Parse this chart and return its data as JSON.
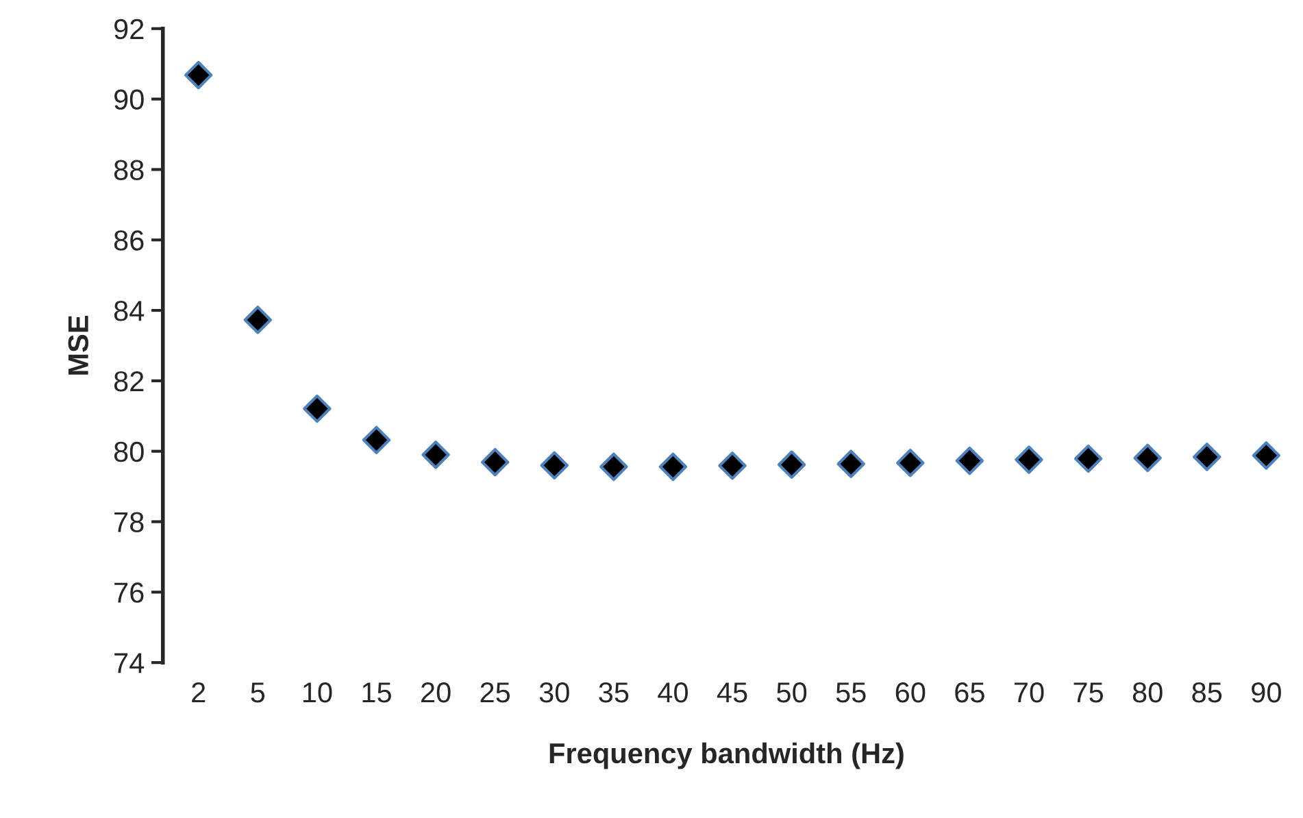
{
  "chart_data": {
    "type": "scatter",
    "xlabel": "Frequency bandwidth (Hz)",
    "ylabel": "MSE",
    "categories": [
      "2",
      "5",
      "10",
      "15",
      "20",
      "25",
      "30",
      "35",
      "40",
      "45",
      "50",
      "55",
      "60",
      "65",
      "70",
      "75",
      "80",
      "85",
      "90"
    ],
    "series": [
      {
        "color": "#000000",
        "values": [
          90.68,
          83.73,
          81.21,
          80.32,
          79.9,
          79.69,
          79.6,
          79.56,
          79.56,
          79.59,
          79.62,
          79.64,
          79.67,
          79.73,
          79.76,
          79.79,
          79.81,
          79.84,
          79.88
        ]
      }
    ],
    "ylim": [
      74,
      92
    ],
    "yticks": [
      74,
      76,
      78,
      80,
      82,
      84,
      86,
      88,
      90,
      92
    ],
    "grid": false,
    "legend": false,
    "marker": "diamond"
  }
}
